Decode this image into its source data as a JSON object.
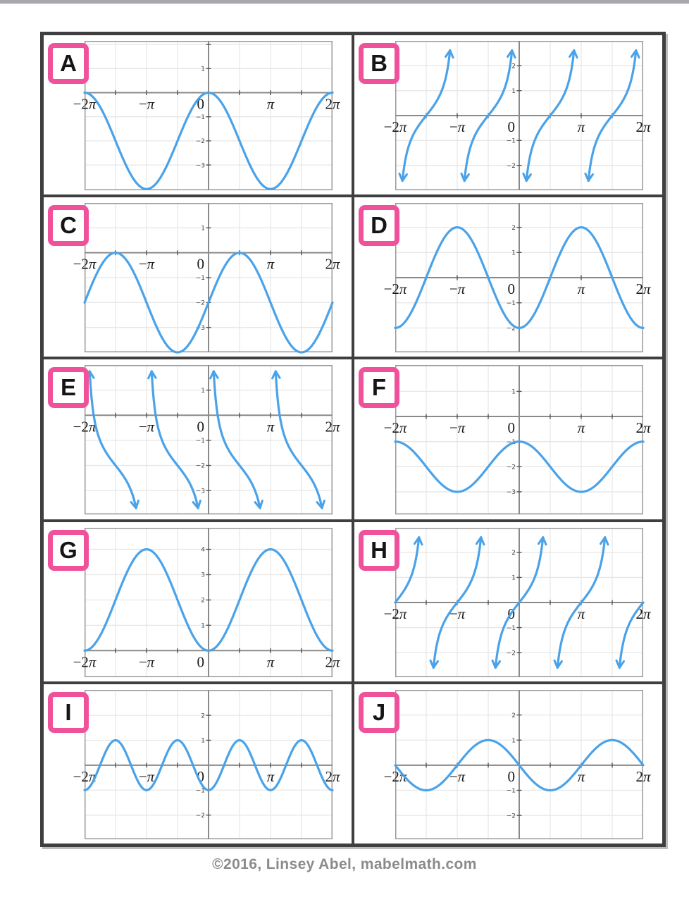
{
  "page": {
    "footer": "©2016, Linsey Abel, mabelmath.com"
  },
  "colors": {
    "curve": "#4aa2e9",
    "badge_border": "#f0519b",
    "badge_letter": "#151515",
    "grid_line": "#e7e7e7",
    "axis": "#8a8a8a",
    "tick": "#555555",
    "graph_border": "#9a9a9a",
    "table_border": "#3f3f3f",
    "x_label": "#1a1a1a",
    "y_label": "#444444",
    "top_bar": "#a9a9ad",
    "footer_text": "#8b8b8b"
  },
  "x_tick_labels": [
    "−2π",
    "−π",
    "0",
    "π",
    "2π"
  ],
  "chart_data": [
    {
      "label": "A",
      "type": "line",
      "function": "y = 2cos(x) − 2",
      "fn": "cos",
      "amp": 2,
      "freq": 1,
      "phase": 0,
      "shift": -2,
      "amplitude": 2,
      "midline": -2,
      "period": "2π",
      "x_range": [
        -6.2832,
        6.2832
      ],
      "y_top": 2.15,
      "y_bottom": -4.05,
      "y_tick_labels": [
        1,
        -1,
        -2,
        -3
      ],
      "x_gridline_spacing": "π/2",
      "y_gridline_spacing": 1,
      "key_points": [
        [
          "−2π",
          0
        ],
        [
          "−π",
          -4
        ],
        [
          "0",
          0
        ],
        [
          "π",
          -4
        ],
        [
          "2π",
          0
        ]
      ]
    },
    {
      "label": "B",
      "type": "line",
      "function": "y = tan(x − π/2)",
      "fn": "tan",
      "amp": 1,
      "freq": 1,
      "phase": 1.5707963,
      "shift": 0,
      "period": "π",
      "asymptotes": "x = kπ",
      "increasing": true,
      "x_range": [
        -6.2832,
        6.2832
      ],
      "y_top": 3.0,
      "y_bottom": -3.0,
      "clip_top": 2.62,
      "clip_bot": -2.62,
      "y_tick_labels": [
        2,
        1,
        -1,
        -2
      ],
      "x_gridline_spacing": "π/2",
      "y_gridline_spacing": 1,
      "key_points": [
        [
          "−3π/2",
          0
        ],
        [
          "−π/2",
          0
        ],
        [
          "π/2",
          0
        ],
        [
          "3π/2",
          0
        ]
      ]
    },
    {
      "label": "C",
      "type": "line",
      "function": "y = 2sin(x) − 2",
      "fn": "sin",
      "amp": 2,
      "freq": 1,
      "phase": 0,
      "shift": -2,
      "amplitude": 2,
      "midline": -2,
      "period": "2π",
      "x_range": [
        -6.2832,
        6.2832
      ],
      "y_top": 2.0,
      "y_bottom": -4.0,
      "y_tick_labels": [
        1,
        -1,
        -2,
        -3
      ],
      "x_gridline_spacing": "π/2",
      "y_gridline_spacing": 1,
      "key_points": [
        [
          "−2π",
          -2
        ],
        [
          "−3π/2",
          0
        ],
        [
          "−π/2",
          -4
        ],
        [
          "0",
          -2
        ],
        [
          "π/2",
          0
        ],
        [
          "3π/2",
          -4
        ],
        [
          "2π",
          -2
        ]
      ]
    },
    {
      "label": "D",
      "type": "line",
      "function": "y = −2cos(x)",
      "fn": "cos",
      "amp": -2,
      "freq": 1,
      "phase": 0,
      "shift": 0,
      "amplitude": 2,
      "midline": 0,
      "period": "2π",
      "x_range": [
        -6.2832,
        6.2832
      ],
      "y_top": 2.97,
      "y_bottom": -2.97,
      "y_tick_labels": [
        2,
        1,
        -1,
        -2
      ],
      "x_gridline_spacing": "π/2",
      "y_gridline_spacing": 1,
      "key_points": [
        [
          "−2π",
          -2
        ],
        [
          "−π",
          2
        ],
        [
          "0",
          -2
        ],
        [
          "π",
          2
        ],
        [
          "2π",
          -2
        ]
      ]
    },
    {
      "label": "E",
      "type": "line",
      "function": "y = cot(x) − 2",
      "fn": "cot",
      "amp": 1,
      "freq": 1,
      "phase": 0,
      "shift": -2,
      "period": "π",
      "asymptotes": "x = kπ",
      "increasing": false,
      "x_range": [
        -6.2832,
        6.2832
      ],
      "y_top": 2.0,
      "y_bottom": -3.95,
      "clip_top": 1.75,
      "clip_bot": -3.7,
      "y_tick_labels": [
        1,
        -1,
        -2,
        -3
      ],
      "x_gridline_spacing": "π/2",
      "y_gridline_spacing": 1,
      "key_points": [
        [
          "−3π/2",
          -2
        ],
        [
          "−π/2",
          -2
        ],
        [
          "π/2",
          -2
        ],
        [
          "3π/2",
          -2
        ]
      ]
    },
    {
      "label": "F",
      "type": "line",
      "function": "y = cos(x) − 2",
      "fn": "cos",
      "amp": 1,
      "freq": 1,
      "phase": 0,
      "shift": -2,
      "amplitude": 1,
      "midline": -2,
      "period": "2π",
      "x_range": [
        -6.2832,
        6.2832
      ],
      "y_top": 2.05,
      "y_bottom": -3.9,
      "y_tick_labels": [
        1,
        -1,
        -2,
        -3
      ],
      "x_gridline_spacing": "π/2",
      "y_gridline_spacing": 1,
      "key_points": [
        [
          "−2π",
          -1
        ],
        [
          "−π",
          -3
        ],
        [
          "0",
          -1
        ],
        [
          "π",
          -3
        ],
        [
          "2π",
          -1
        ]
      ]
    },
    {
      "label": "G",
      "type": "line",
      "function": "y = −2cos(x) + 2",
      "fn": "cos",
      "amp": -2,
      "freq": 1,
      "phase": 0,
      "shift": 2,
      "amplitude": 2,
      "midline": 2,
      "period": "2π",
      "x_range": [
        -6.2832,
        6.2832
      ],
      "y_top": 4.85,
      "y_bottom": -1.05,
      "y_tick_labels": [
        4,
        3,
        2,
        1
      ],
      "x_gridline_spacing": "π/2",
      "y_gridline_spacing": 1,
      "key_points": [
        [
          "−2π",
          0
        ],
        [
          "−π",
          4
        ],
        [
          "0",
          0
        ],
        [
          "π",
          4
        ],
        [
          "2π",
          0
        ]
      ]
    },
    {
      "label": "H",
      "type": "line",
      "function": "y = tan(x)",
      "fn": "tan",
      "amp": 1,
      "freq": 1,
      "phase": 0,
      "shift": 0,
      "period": "π",
      "asymptotes": "x = π/2 + kπ",
      "increasing": true,
      "x_range": [
        -6.2832,
        6.2832
      ],
      "y_top": 2.98,
      "y_bottom": -2.98,
      "clip_top": 2.6,
      "clip_bot": -2.6,
      "y_tick_labels": [
        2,
        1,
        -1,
        -2
      ],
      "x_gridline_spacing": "π/2",
      "y_gridline_spacing": 1,
      "key_points": [
        [
          "−2π",
          0
        ],
        [
          "−π",
          0
        ],
        [
          "0",
          0
        ],
        [
          "π",
          0
        ],
        [
          "2π",
          0
        ]
      ]
    },
    {
      "label": "I",
      "type": "line",
      "function": "y = −cos(2x)",
      "fn": "cos",
      "amp": -1,
      "freq": 2,
      "phase": 0,
      "shift": 0,
      "amplitude": 1,
      "midline": 0,
      "period": "π",
      "x_range": [
        -6.2832,
        6.2832
      ],
      "y_top": 3.02,
      "y_bottom": -2.97,
      "y_tick_labels": [
        2,
        1,
        -1,
        -2
      ],
      "x_gridline_spacing": "π/2",
      "y_gridline_spacing": 1,
      "key_points": [
        [
          "0",
          -1
        ],
        [
          "π/2",
          1
        ],
        [
          "π",
          -1
        ],
        [
          "3π/2",
          1
        ],
        [
          "2π",
          -1
        ]
      ]
    },
    {
      "label": "J",
      "type": "line",
      "function": "y = −sin(x)",
      "fn": "sin",
      "amp": -1,
      "freq": 1,
      "phase": 0,
      "shift": 0,
      "amplitude": 1,
      "midline": 0,
      "period": "2π",
      "x_range": [
        -6.2832,
        6.2832
      ],
      "y_top": 3.0,
      "y_bottom": -2.95,
      "y_tick_labels": [
        2,
        1,
        -1,
        -2
      ],
      "x_gridline_spacing": "π/2",
      "y_gridline_spacing": 1,
      "key_points": [
        [
          "−π/2",
          1
        ],
        [
          "π/2",
          -1
        ],
        [
          "3π/2",
          1
        ]
      ]
    }
  ]
}
